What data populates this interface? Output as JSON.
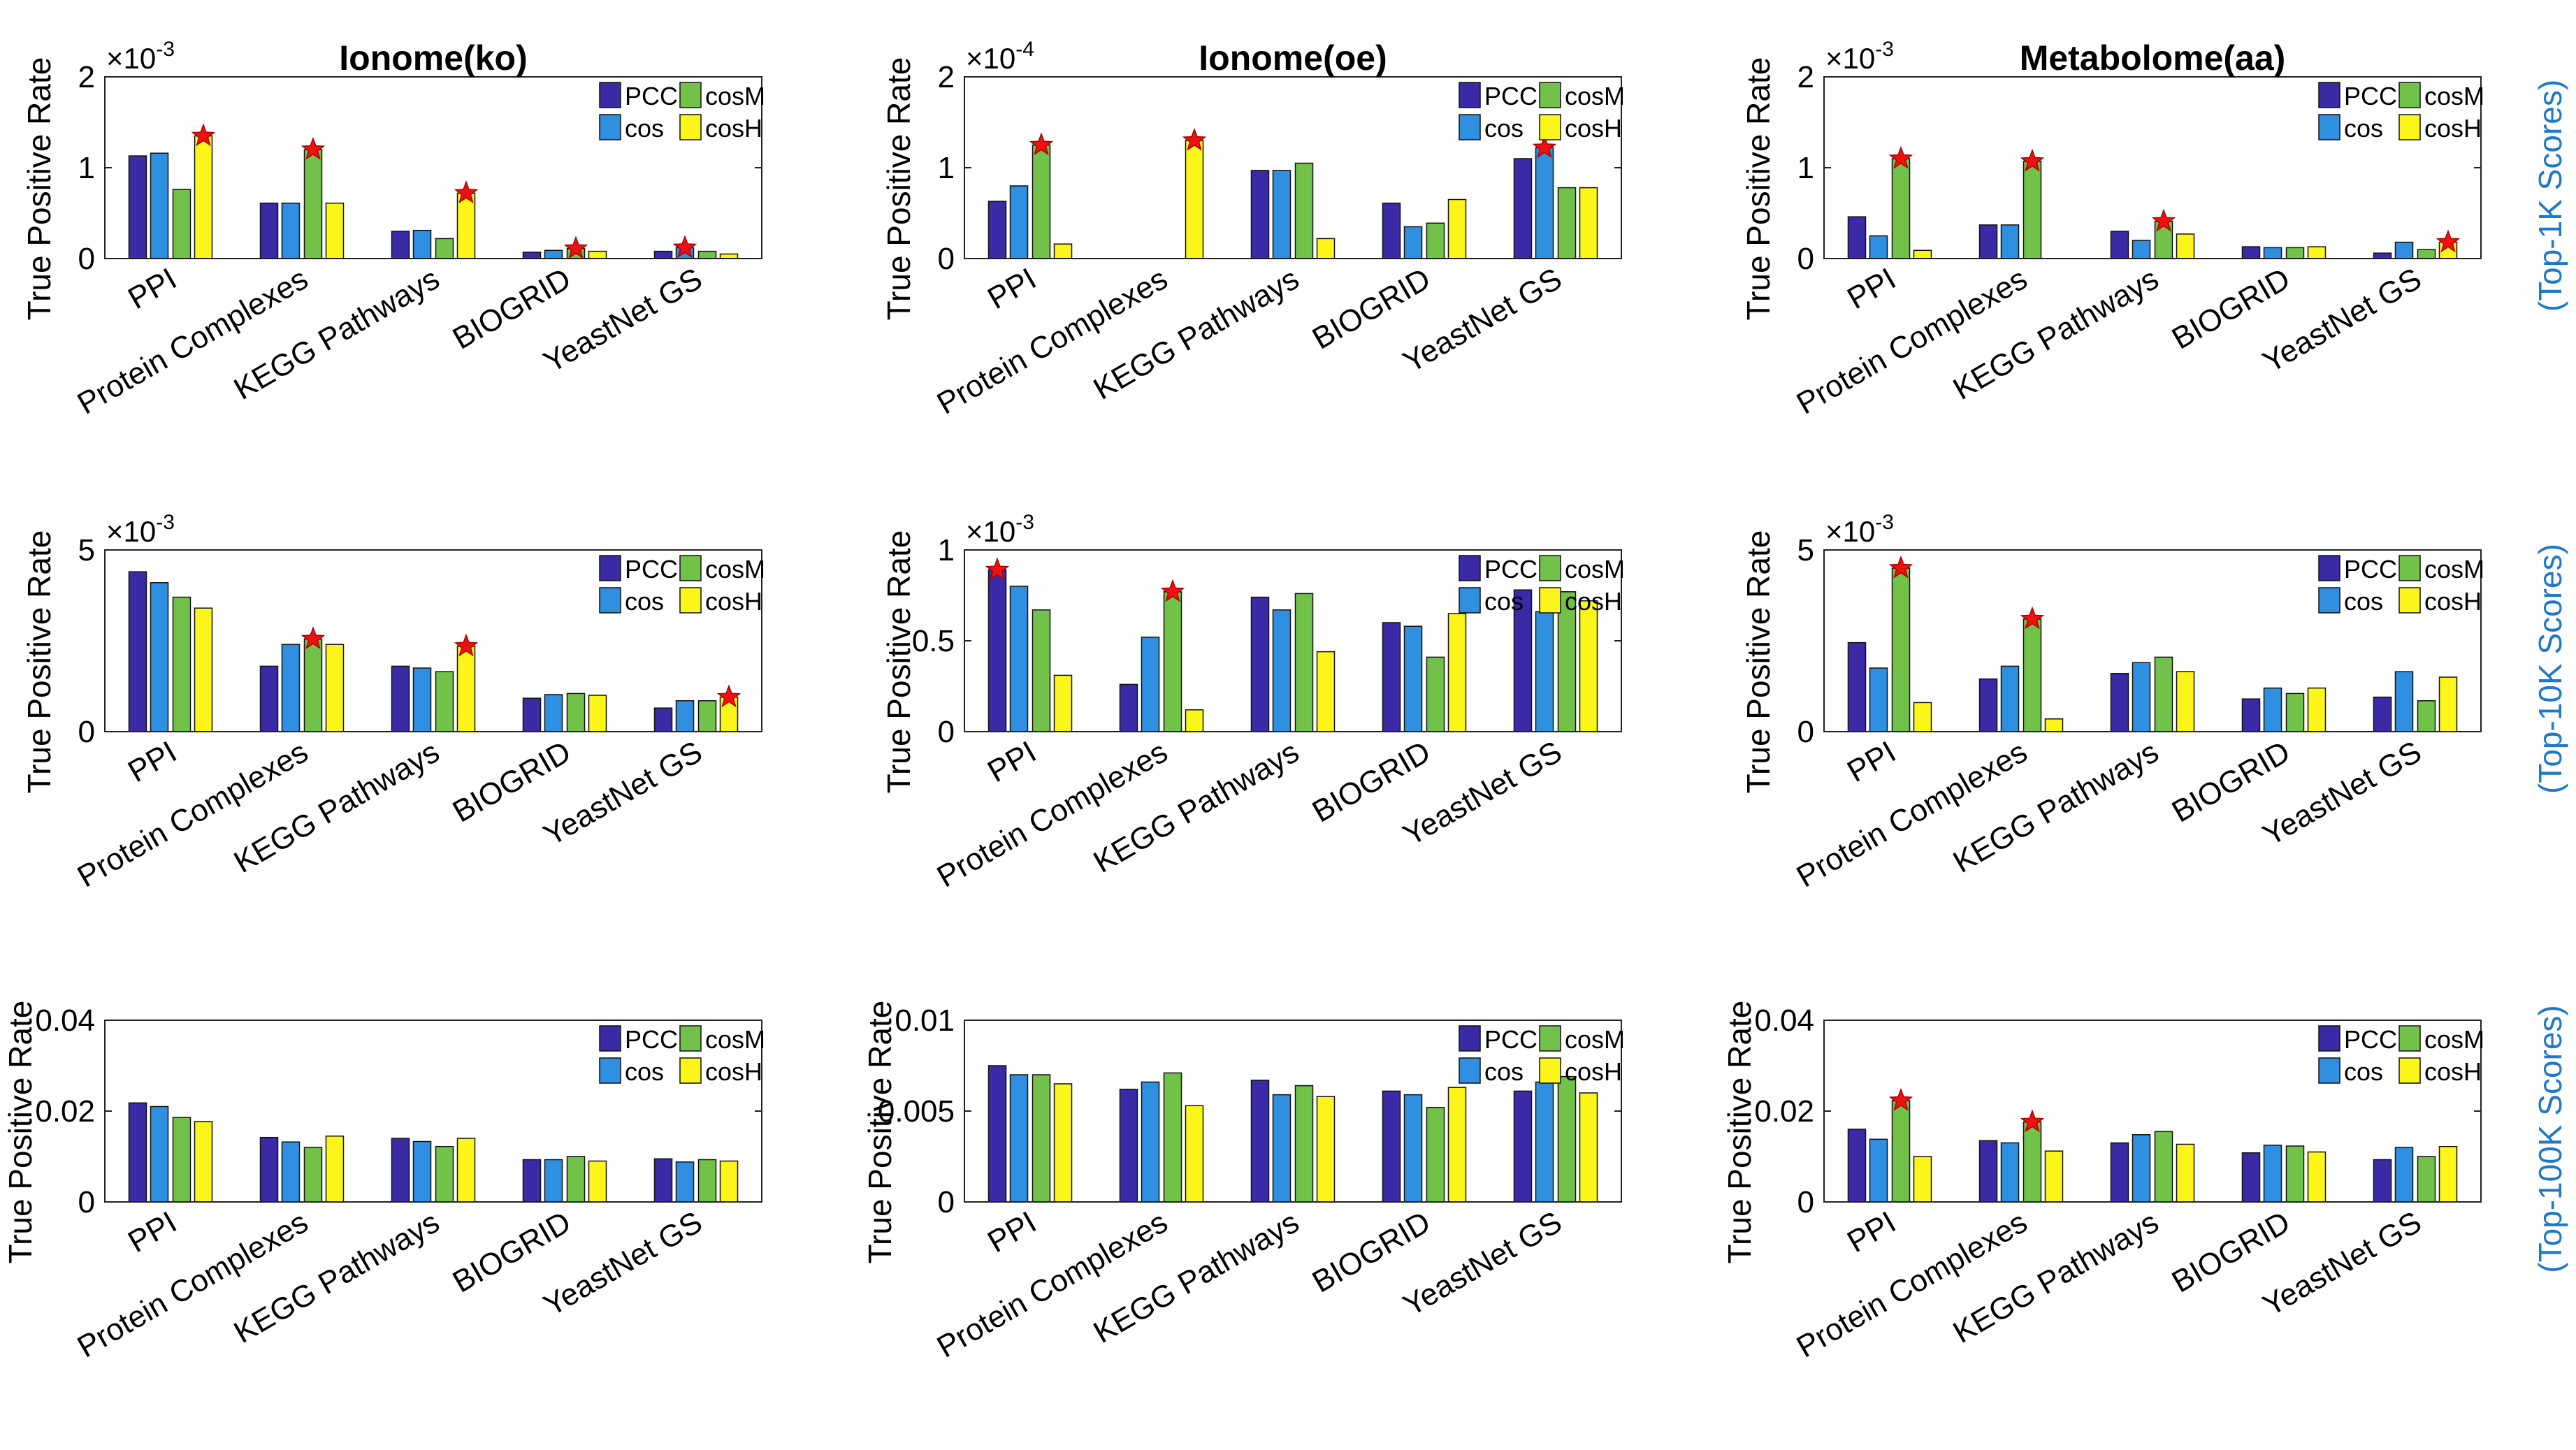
{
  "figure": {
    "ylabel": "True Positive Rate",
    "categories": [
      "PPI",
      "Protein Complexes",
      "KEGG Pathways",
      "BIOGRID",
      "YeastNet GS"
    ],
    "legend": [
      "PCC",
      "cosM",
      "cos",
      "cosH"
    ],
    "column_titles": [
      "Ionome(ko)",
      "Ionome(oe)",
      "Metabolome(aa)"
    ],
    "row_labels": [
      "(Top-1K Scores)",
      "(Top-10K Scores)",
      "(Top-100K Scores)"
    ],
    "colors": {
      "PCC": "#3a2aa6",
      "cos": "#2f8fe0",
      "cosM": "#72c24a",
      "cosH": "#fbf51a",
      "star": "#ee1111",
      "row_label": "#1f78c8"
    }
  },
  "chart_data": [
    {
      "type": "bar",
      "title": "Ionome(ko)",
      "row": 0,
      "col": 0,
      "ylim": [
        0,
        2
      ],
      "yticks": [
        0,
        1,
        2
      ],
      "ytick_labels": [
        "0",
        "1",
        "2"
      ],
      "exponent": "-3",
      "series": [
        {
          "name": "PCC",
          "values": [
            1.13,
            0.61,
            0.3,
            0.07,
            0.08
          ]
        },
        {
          "name": "cos",
          "values": [
            1.16,
            0.61,
            0.31,
            0.09,
            0.12
          ]
        },
        {
          "name": "cosM",
          "values": [
            0.76,
            1.2,
            0.22,
            0.11,
            0.08
          ]
        },
        {
          "name": "cosH",
          "values": [
            1.35,
            0.61,
            0.72,
            0.08,
            0.05
          ]
        }
      ],
      "best": [
        3,
        2,
        3,
        2,
        1
      ]
    },
    {
      "type": "bar",
      "title": "Ionome(oe)",
      "row": 0,
      "col": 1,
      "ylim": [
        0,
        2
      ],
      "yticks": [
        0,
        1,
        2
      ],
      "ytick_labels": [
        "0",
        "1",
        "2"
      ],
      "exponent": "-4",
      "series": [
        {
          "name": "PCC",
          "values": [
            0.63,
            0,
            0.97,
            0.61,
            1.1
          ]
        },
        {
          "name": "cos",
          "values": [
            0.8,
            0,
            0.97,
            0.35,
            1.22
          ]
        },
        {
          "name": "cosM",
          "values": [
            1.25,
            0,
            1.05,
            0.39,
            0.78
          ]
        },
        {
          "name": "cosH",
          "values": [
            0.16,
            1.3,
            0.22,
            0.65,
            0.78
          ]
        }
      ],
      "best": [
        2,
        3,
        -1,
        -1,
        1
      ]
    },
    {
      "type": "bar",
      "title": "Metabolome(aa)",
      "row": 0,
      "col": 2,
      "ylim": [
        0,
        2
      ],
      "yticks": [
        0,
        1,
        2
      ],
      "ytick_labels": [
        "0",
        "1",
        "2"
      ],
      "exponent": "-3",
      "series": [
        {
          "name": "PCC",
          "values": [
            0.46,
            0.37,
            0.3,
            0.13,
            0.06
          ]
        },
        {
          "name": "cos",
          "values": [
            0.25,
            0.37,
            0.2,
            0.12,
            0.18
          ]
        },
        {
          "name": "cosM",
          "values": [
            1.1,
            1.07,
            0.41,
            0.12,
            0.1
          ]
        },
        {
          "name": "cosH",
          "values": [
            0.09,
            0,
            0.27,
            0.13,
            0.18
          ]
        }
      ],
      "best": [
        2,
        2,
        2,
        -1,
        3
      ]
    },
    {
      "type": "bar",
      "title": "",
      "row": 1,
      "col": 0,
      "ylim": [
        0,
        5
      ],
      "yticks": [
        0,
        5
      ],
      "ytick_labels": [
        "0",
        "5"
      ],
      "exponent": "-3",
      "series": [
        {
          "name": "PCC",
          "values": [
            4.4,
            1.8,
            1.8,
            0.92,
            0.65
          ]
        },
        {
          "name": "cos",
          "values": [
            4.1,
            2.4,
            1.75,
            1.02,
            0.85
          ]
        },
        {
          "name": "cosM",
          "values": [
            3.7,
            2.55,
            1.65,
            1.05,
            0.85
          ]
        },
        {
          "name": "cosH",
          "values": [
            3.4,
            2.4,
            2.35,
            1.0,
            0.95
          ]
        }
      ],
      "best": [
        -1,
        2,
        3,
        -1,
        3
      ]
    },
    {
      "type": "bar",
      "title": "",
      "row": 1,
      "col": 1,
      "ylim": [
        0,
        1
      ],
      "yticks": [
        0,
        0.5,
        1
      ],
      "ytick_labels": [
        "0",
        "0.5",
        "1"
      ],
      "exponent": "-3",
      "series": [
        {
          "name": "PCC",
          "values": [
            0.89,
            0.26,
            0.74,
            0.6,
            0.78
          ]
        },
        {
          "name": "cos",
          "values": [
            0.8,
            0.52,
            0.67,
            0.58,
            0.66
          ]
        },
        {
          "name": "cosM",
          "values": [
            0.67,
            0.77,
            0.76,
            0.41,
            0.77
          ]
        },
        {
          "name": "cosH",
          "values": [
            0.31,
            0.12,
            0.44,
            0.65,
            0.72
          ]
        }
      ],
      "best": [
        0,
        2,
        -1,
        -1,
        -1
      ]
    },
    {
      "type": "bar",
      "title": "",
      "row": 1,
      "col": 2,
      "ylim": [
        0,
        5
      ],
      "yticks": [
        0,
        5
      ],
      "ytick_labels": [
        "0",
        "5"
      ],
      "exponent": "-3",
      "series": [
        {
          "name": "PCC",
          "values": [
            2.45,
            1.45,
            1.6,
            0.9,
            0.95
          ]
        },
        {
          "name": "cos",
          "values": [
            1.75,
            1.8,
            1.9,
            1.2,
            1.65
          ]
        },
        {
          "name": "cosM",
          "values": [
            4.5,
            3.1,
            2.05,
            1.05,
            0.85
          ]
        },
        {
          "name": "cosH",
          "values": [
            0.8,
            0.35,
            1.65,
            1.2,
            1.5
          ]
        }
      ],
      "best": [
        2,
        2,
        -1,
        -1,
        -1
      ]
    },
    {
      "type": "bar",
      "title": "",
      "row": 2,
      "col": 0,
      "ylim": [
        0,
        0.04
      ],
      "yticks": [
        0,
        0.02,
        0.04
      ],
      "ytick_labels": [
        "0",
        "0.02",
        "0.04"
      ],
      "exponent": "",
      "series": [
        {
          "name": "PCC",
          "values": [
            0.0218,
            0.0142,
            0.014,
            0.0093,
            0.0095
          ]
        },
        {
          "name": "cos",
          "values": [
            0.021,
            0.0132,
            0.0133,
            0.0093,
            0.0088
          ]
        },
        {
          "name": "cosM",
          "values": [
            0.0186,
            0.012,
            0.0122,
            0.01,
            0.0093
          ]
        },
        {
          "name": "cosH",
          "values": [
            0.0177,
            0.0145,
            0.014,
            0.009,
            0.009
          ]
        }
      ],
      "best": [
        -1,
        -1,
        -1,
        -1,
        -1
      ]
    },
    {
      "type": "bar",
      "title": "",
      "row": 2,
      "col": 1,
      "ylim": [
        0,
        0.01
      ],
      "yticks": [
        0,
        0.005,
        0.01
      ],
      "ytick_labels": [
        "0",
        "0.005",
        "0.01"
      ],
      "exponent": "",
      "series": [
        {
          "name": "PCC",
          "values": [
            0.0075,
            0.0062,
            0.0067,
            0.0061,
            0.0061
          ]
        },
        {
          "name": "cos",
          "values": [
            0.007,
            0.0066,
            0.0059,
            0.0059,
            0.0066
          ]
        },
        {
          "name": "cosM",
          "values": [
            0.007,
            0.0071,
            0.0064,
            0.0052,
            0.0069
          ]
        },
        {
          "name": "cosH",
          "values": [
            0.0065,
            0.0053,
            0.0058,
            0.0063,
            0.006
          ]
        }
      ],
      "best": [
        -1,
        -1,
        -1,
        -1,
        -1
      ]
    },
    {
      "type": "bar",
      "title": "",
      "row": 2,
      "col": 2,
      "ylim": [
        0,
        0.04
      ],
      "yticks": [
        0,
        0.02,
        0.04
      ],
      "ytick_labels": [
        "0",
        "0.02",
        "0.04"
      ],
      "exponent": "",
      "series": [
        {
          "name": "PCC",
          "values": [
            0.016,
            0.0135,
            0.013,
            0.0108,
            0.0093
          ]
        },
        {
          "name": "cos",
          "values": [
            0.0138,
            0.013,
            0.0148,
            0.0125,
            0.012
          ]
        },
        {
          "name": "cosM",
          "values": [
            0.0223,
            0.0176,
            0.0155,
            0.0123,
            0.01
          ]
        },
        {
          "name": "cosH",
          "values": [
            0.01,
            0.0112,
            0.0127,
            0.011,
            0.0122
          ]
        }
      ],
      "best": [
        2,
        2,
        -1,
        -1,
        -1
      ]
    }
  ]
}
